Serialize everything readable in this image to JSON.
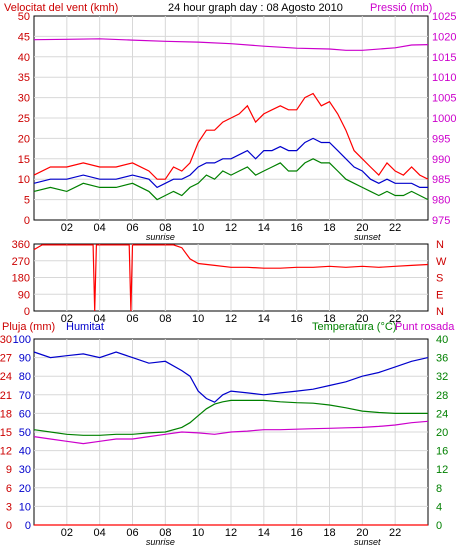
{
  "chart_data": [
    {
      "type": "line",
      "title": "24 hour graph day : 08 Agosto 2010",
      "ylabel_left": "Velocitat del vent (kmh)",
      "ylabel_right": "Pressió (mb)",
      "x_ticks": [
        "02",
        "04",
        "06",
        "08",
        "10",
        "12",
        "14",
        "16",
        "18",
        "20",
        "22"
      ],
      "x_markers": {
        "sunrise": "sunrise",
        "sunset": "sunset"
      },
      "y_left_ticks": [
        "0",
        "5",
        "10",
        "15",
        "20",
        "25",
        "30",
        "35",
        "40",
        "45",
        "50"
      ],
      "y_left_range": [
        0,
        50
      ],
      "y_right_ticks": [
        "975",
        "980",
        "985",
        "990",
        "995",
        "1000",
        "1005",
        "1010",
        "1015",
        "1020",
        "1025"
      ],
      "y_right_range": [
        975,
        1025
      ],
      "grid": true,
      "series": [
        {
          "color": "#ff0000",
          "axis": "left",
          "x": [
            0,
            1,
            2,
            3,
            4,
            5,
            6,
            7,
            7.5,
            8,
            8.5,
            9,
            9.5,
            10,
            10.5,
            11,
            11.5,
            12,
            12.5,
            13,
            13.5,
            14,
            14.5,
            15,
            15.5,
            16,
            16.5,
            17,
            17.5,
            18,
            18.5,
            19,
            19.5,
            20,
            20.5,
            21,
            21.5,
            22,
            22.5,
            23,
            23.5,
            24
          ],
          "values": [
            11,
            13,
            13,
            14,
            13,
            13,
            14,
            12,
            10,
            10,
            13,
            12,
            14,
            19,
            22,
            22,
            24,
            25,
            26,
            28,
            24,
            26,
            27,
            28,
            27,
            27,
            30,
            31,
            28,
            29,
            26,
            22,
            17,
            15,
            13,
            11,
            14,
            12,
            11,
            13,
            11,
            10
          ]
        },
        {
          "color": "#0000cc",
          "axis": "left",
          "x": [
            0,
            1,
            2,
            3,
            4,
            5,
            6,
            7,
            7.5,
            8,
            8.5,
            9,
            9.5,
            10,
            10.5,
            11,
            11.5,
            12,
            12.5,
            13,
            13.5,
            14,
            14.5,
            15,
            15.5,
            16,
            16.5,
            17,
            17.5,
            18,
            18.5,
            19,
            19.5,
            20,
            20.5,
            21,
            21.5,
            22,
            22.5,
            23,
            23.5,
            24
          ],
          "values": [
            9,
            10,
            10,
            11,
            10,
            10,
            11,
            10,
            8,
            9,
            10,
            10,
            11,
            13,
            14,
            14,
            15,
            15,
            16,
            17,
            15,
            17,
            17,
            18,
            17,
            17,
            19,
            20,
            19,
            19,
            17,
            15,
            13,
            12,
            10,
            9,
            10,
            9,
            9,
            9,
            8,
            8
          ]
        },
        {
          "color": "#008000",
          "axis": "left",
          "x": [
            0,
            1,
            2,
            3,
            4,
            5,
            6,
            7,
            7.5,
            8,
            8.5,
            9,
            9.5,
            10,
            10.5,
            11,
            11.5,
            12,
            12.5,
            13,
            13.5,
            14,
            14.5,
            15,
            15.5,
            16,
            16.5,
            17,
            17.5,
            18,
            18.5,
            19,
            19.5,
            20,
            20.5,
            21,
            21.5,
            22,
            22.5,
            23,
            23.5,
            24
          ],
          "values": [
            7,
            8,
            7,
            9,
            8,
            8,
            9,
            7,
            5,
            6,
            7,
            6,
            8,
            9,
            11,
            10,
            12,
            11,
            12,
            13,
            11,
            12,
            13,
            14,
            12,
            12,
            14,
            15,
            14,
            14,
            12,
            10,
            9,
            8,
            7,
            6,
            7,
            6,
            6,
            7,
            6,
            5
          ]
        },
        {
          "color": "#cc00cc",
          "axis": "right",
          "x": [
            0,
            2,
            4,
            6,
            8,
            10,
            12,
            14,
            16,
            18,
            19,
            20,
            22,
            23,
            24
          ],
          "values": [
            1019.2,
            1019.3,
            1019.4,
            1019.1,
            1018.8,
            1018.6,
            1018.2,
            1017.6,
            1017.1,
            1016.9,
            1016.6,
            1016.6,
            1017.2,
            1017.9,
            1018.0
          ]
        }
      ]
    },
    {
      "type": "line",
      "title": "",
      "y_left_ticks": [
        "0",
        "90",
        "180",
        "270",
        "360"
      ],
      "y_left_range": [
        0,
        360
      ],
      "y_right_ticks": [
        "N",
        "W",
        "S",
        "E",
        "N"
      ],
      "x_ticks": [
        "02",
        "04",
        "06",
        "08",
        "10",
        "12",
        "14",
        "16",
        "18",
        "20",
        "22"
      ],
      "grid": true,
      "series": [
        {
          "color": "#ff0000",
          "name": "",
          "x": [
            0,
            0.5,
            1,
            2,
            3,
            3.6,
            3.7,
            3.8,
            4,
            5,
            5.8,
            5.9,
            6,
            7,
            8,
            8.5,
            9,
            9.5,
            10,
            11,
            12,
            13,
            14,
            15,
            16,
            17,
            18,
            19,
            20,
            21,
            22,
            23,
            24
          ],
          "values": [
            330,
            355,
            355,
            355,
            355,
            355,
            0,
            355,
            355,
            355,
            355,
            0,
            355,
            355,
            355,
            355,
            340,
            280,
            255,
            245,
            235,
            235,
            230,
            230,
            235,
            235,
            240,
            235,
            240,
            235,
            240,
            245,
            250
          ]
        }
      ]
    },
    {
      "type": "line",
      "labels": {
        "pluja": "Pluja (mm)",
        "humitat": "Humitat",
        "temp": "Temperatura (°C)",
        "dew": "Punt rosada"
      },
      "y_left1_ticks": [
        "0",
        "3",
        "6",
        "9",
        "12",
        "15",
        "18",
        "21",
        "24",
        "27",
        "30"
      ],
      "y_left2_ticks": [
        "0",
        "10",
        "20",
        "30",
        "40",
        "50",
        "60",
        "70",
        "80",
        "90",
        "100"
      ],
      "y_right_ticks": [
        "0",
        "4",
        "8",
        "12",
        "16",
        "20",
        "24",
        "28",
        "32",
        "36",
        "40"
      ],
      "y_range_humitat": [
        0,
        100
      ],
      "y_range_temp": [
        0,
        40
      ],
      "x_ticks": [
        "02",
        "04",
        "06",
        "08",
        "10",
        "12",
        "14",
        "16",
        "18",
        "20",
        "22"
      ],
      "x_markers": {
        "sunrise": "sunrise",
        "sunset": "sunset"
      },
      "grid": true,
      "series": [
        {
          "color": "#0000cc",
          "axis": "humitat",
          "x": [
            0,
            1,
            2,
            3,
            4,
            5,
            6,
            7,
            8,
            9,
            9.5,
            10,
            10.5,
            11,
            11.5,
            12,
            13,
            14,
            15,
            16,
            17,
            18,
            19,
            20,
            21,
            22,
            23,
            24
          ],
          "values": [
            93,
            90,
            91,
            92,
            90,
            93,
            90,
            87,
            88,
            83,
            80,
            72,
            68,
            66,
            70,
            72,
            71,
            70,
            71,
            72,
            73,
            75,
            77,
            80,
            82,
            85,
            88,
            90
          ]
        },
        {
          "color": "#008000",
          "axis": "temp",
          "x": [
            0,
            1,
            2,
            3,
            4,
            5,
            6,
            7,
            8,
            9,
            9.5,
            10,
            10.5,
            11,
            11.5,
            12,
            13,
            14,
            15,
            16,
            17,
            18,
            19,
            20,
            21,
            22,
            23,
            24
          ],
          "values": [
            20.5,
            20.0,
            19.5,
            19.3,
            19.3,
            19.5,
            19.5,
            19.8,
            20.0,
            21.0,
            22.0,
            23.5,
            25.0,
            26.0,
            26.5,
            26.8,
            26.8,
            26.8,
            26.5,
            26.3,
            26.2,
            25.8,
            25.2,
            24.5,
            24.2,
            24.0,
            24.0,
            24.0
          ]
        },
        {
          "color": "#cc00cc",
          "axis": "temp",
          "x": [
            0,
            1,
            2,
            3,
            4,
            5,
            6,
            7,
            8,
            9,
            10,
            11,
            12,
            13,
            14,
            15,
            16,
            17,
            18,
            19,
            20,
            21,
            22,
            23,
            24
          ],
          "values": [
            19.0,
            18.5,
            18.0,
            17.5,
            18.0,
            18.5,
            18.5,
            19.0,
            19.5,
            20.0,
            19.8,
            19.5,
            20.0,
            20.2,
            20.5,
            20.5,
            20.6,
            20.7,
            20.8,
            20.9,
            21.0,
            21.2,
            21.5,
            22.0,
            22.3
          ]
        },
        {
          "color": "#ff0000",
          "axis": "pluja",
          "x": [
            0,
            24
          ],
          "values": [
            0,
            0
          ]
        }
      ]
    }
  ]
}
